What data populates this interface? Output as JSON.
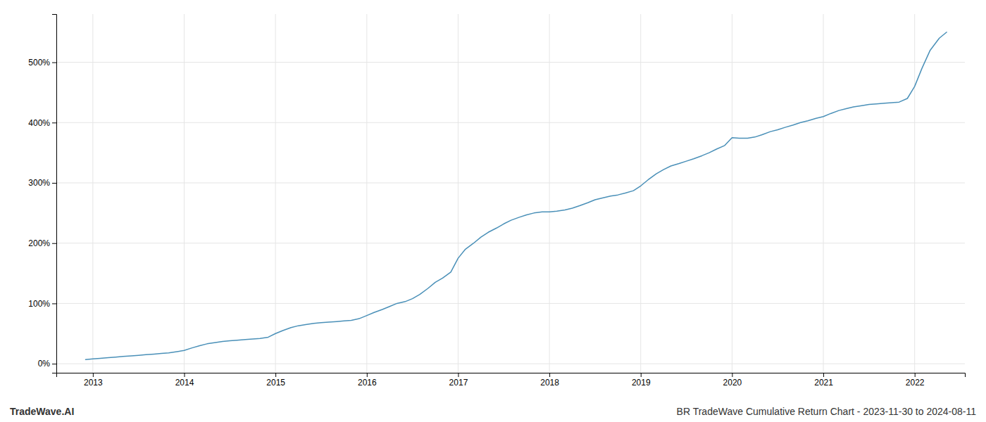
{
  "chart_data": {
    "type": "line",
    "title": "BR TradeWave Cumulative Return Chart - 2023-11-30 to 2024-08-11",
    "annotations": [
      "TradeWave.AI"
    ],
    "color": "#4a90b8",
    "grid": true,
    "xlim": [
      2012.6,
      2022.55
    ],
    "xticks": [
      2013,
      2014,
      2015,
      2016,
      2017,
      2018,
      2019,
      2020,
      2021,
      2022
    ],
    "ylim": [
      -15,
      580
    ],
    "yticks": [
      {
        "value": 0,
        "label": "0%"
      },
      {
        "value": 100,
        "label": "100%"
      },
      {
        "value": 200,
        "label": "200%"
      },
      {
        "value": 300,
        "label": "300%"
      },
      {
        "value": 400,
        "label": "400%"
      },
      {
        "value": 500,
        "label": "500%"
      }
    ],
    "x": [
      2012.92,
      2013.0,
      2013.08,
      2013.17,
      2013.25,
      2013.33,
      2013.42,
      2013.5,
      2013.58,
      2013.67,
      2013.75,
      2013.83,
      2013.92,
      2014.0,
      2014.08,
      2014.17,
      2014.25,
      2014.33,
      2014.42,
      2014.5,
      2014.58,
      2014.67,
      2014.75,
      2014.83,
      2014.92,
      2015.0,
      2015.08,
      2015.17,
      2015.25,
      2015.33,
      2015.42,
      2015.5,
      2015.58,
      2015.67,
      2015.75,
      2015.83,
      2015.92,
      2016.0,
      2016.08,
      2016.17,
      2016.25,
      2016.33,
      2016.42,
      2016.5,
      2016.58,
      2016.67,
      2016.75,
      2016.83,
      2016.92,
      2017.0,
      2017.08,
      2017.17,
      2017.25,
      2017.33,
      2017.42,
      2017.5,
      2017.58,
      2017.67,
      2017.75,
      2017.83,
      2017.92,
      2018.0,
      2018.08,
      2018.17,
      2018.25,
      2018.33,
      2018.42,
      2018.5,
      2018.58,
      2018.67,
      2018.75,
      2018.83,
      2018.92,
      2019.0,
      2019.08,
      2019.17,
      2019.25,
      2019.33,
      2019.42,
      2019.5,
      2019.58,
      2019.67,
      2019.75,
      2019.83,
      2019.92,
      2020.0,
      2020.08,
      2020.17,
      2020.25,
      2020.33,
      2020.42,
      2020.5,
      2020.58,
      2020.67,
      2020.75,
      2020.83,
      2020.92,
      2021.0,
      2021.08,
      2021.17,
      2021.25,
      2021.33,
      2021.42,
      2021.5,
      2021.58,
      2021.67,
      2021.75,
      2021.83,
      2021.92,
      2022.0,
      2022.08,
      2022.17,
      2022.27,
      2022.35
    ],
    "values": [
      7,
      8,
      9,
      10,
      11,
      12,
      13,
      14,
      15,
      16,
      17,
      18,
      20,
      22,
      26,
      30,
      33,
      35,
      37,
      38,
      39,
      40,
      41,
      42,
      44,
      50,
      55,
      60,
      63,
      65,
      67,
      68,
      69,
      70,
      71,
      72,
      75,
      80,
      85,
      90,
      95,
      100,
      103,
      108,
      115,
      125,
      135,
      142,
      152,
      175,
      190,
      200,
      210,
      218,
      225,
      232,
      238,
      243,
      247,
      250,
      252,
      252,
      253,
      255,
      258,
      262,
      267,
      272,
      275,
      278,
      280,
      283,
      287,
      295,
      305,
      315,
      322,
      328,
      332,
      336,
      340,
      345,
      350,
      356,
      362,
      375,
      374,
      374,
      376,
      380,
      385,
      388,
      392,
      396,
      400,
      403,
      407,
      410,
      415,
      420,
      423,
      426,
      428,
      430,
      431,
      432,
      433,
      434,
      440,
      460,
      490,
      520,
      540,
      550
    ]
  }
}
